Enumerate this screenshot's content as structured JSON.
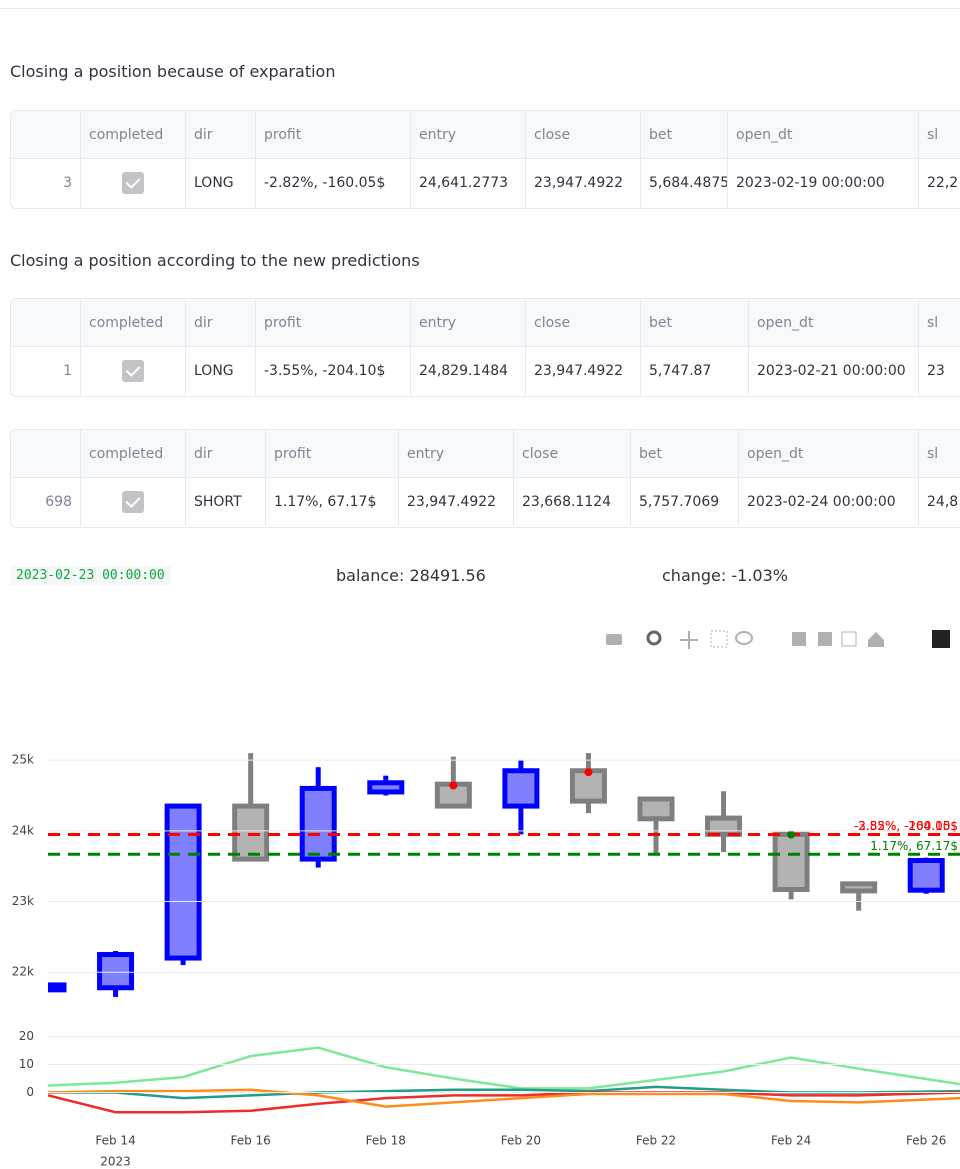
{
  "sections": [
    {
      "heading": "Closing a position because of exparation",
      "tables": [
        {
          "columns": [
            "completed",
            "dir",
            "profit",
            "entry",
            "close",
            "bet",
            "open_dt",
            "sl"
          ],
          "rows": [
            [
              "3",
              true,
              "LONG",
              "-2.82%, -160.05$",
              "24,641.2773",
              "23,947.4922",
              "5,684.4875",
              "2023-02-19 00:00:00",
              "22,2"
            ]
          ]
        }
      ]
    },
    {
      "heading": "Closing a position according to the new predictions",
      "tables": [
        {
          "columns": [
            "completed",
            "dir",
            "profit",
            "entry",
            "close",
            "bet",
            "open_dt",
            "sl"
          ],
          "rows": [
            [
              "1",
              true,
              "LONG",
              "-3.55%, -204.10$",
              "24,829.1484",
              "23,947.4922",
              "5,747.87",
              "2023-02-21 00:00:00",
              "23"
            ]
          ]
        },
        {
          "columns": [
            "completed",
            "dir",
            "profit",
            "entry",
            "close",
            "bet",
            "open_dt",
            "sl"
          ],
          "rows": [
            [
              "698",
              true,
              "SHORT",
              "1.17%, 67.17$",
              "23,947.4922",
              "23,668.1124",
              "5,757.7069",
              "2023-02-24 00:00:00",
              "24,8"
            ]
          ]
        }
      ]
    }
  ],
  "status": {
    "timestamp": "2023-02-23 00:00:00",
    "balance": "balance: 28491.56",
    "change": "change: -1.03%"
  },
  "chart_data": [
    {
      "type": "candlestick",
      "x": [
        "2023-02-13",
        "2023-02-14",
        "2023-02-15",
        "2023-02-16",
        "2023-02-17",
        "2023-02-18",
        "2023-02-19",
        "2023-02-20",
        "2023-02-21",
        "2023-02-22",
        "2023-02-23",
        "2023-02-24",
        "2023-02-25",
        "2023-02-26"
      ],
      "open": [
        21750,
        21780,
        22200,
        24350,
        23600,
        24550,
        24660,
        24350,
        24850,
        24450,
        24180,
        23950,
        23250,
        23160
      ],
      "high": [
        21830,
        22300,
        24350,
        25100,
        24900,
        24780,
        25050,
        25000,
        25100,
        24450,
        24560,
        23950,
        23250,
        23620
      ],
      "low": [
        21720,
        21650,
        22100,
        23600,
        23480,
        24500,
        24350,
        23950,
        24250,
        23650,
        23700,
        23030,
        22870,
        23110
      ],
      "close": [
        21820,
        22250,
        24350,
        23600,
        24600,
        24680,
        24350,
        24850,
        24420,
        24170,
        23950,
        23170,
        23150,
        23580
      ],
      "increasing_color": "#0000ff",
      "increasing_fill": "#8080ff",
      "decreasing_color": "#7f7f7f",
      "decreasing_fill": "#b3b3b3",
      "xlim": [
        "2023-02-13",
        "2023-02-26 12:00"
      ],
      "ylim": [
        21550,
        25200
      ],
      "yticks": [
        {
          "value": 22000,
          "label": "22k"
        },
        {
          "value": 23000,
          "label": "23k"
        },
        {
          "value": 24000,
          "label": "24k"
        },
        {
          "value": 25000,
          "label": "25k"
        }
      ],
      "grid": true,
      "hlines": [
        {
          "value": 23947.4922,
          "color": "#ff0000",
          "labels": [
            "-2.82%, -160.05$",
            "-3.55%, -204.10$"
          ]
        },
        {
          "value": 23668.1124,
          "color": "#008000",
          "labels": [
            "1.17%, 67.17$"
          ]
        }
      ],
      "markers": {
        "x": [
          "2023-02-19",
          "2023-02-21",
          "2023-02-24"
        ],
        "values": [
          24641.2773,
          24829.1484,
          23947.4922
        ],
        "colors": [
          "#ff0000",
          "#ff0000",
          "#008000"
        ]
      }
    },
    {
      "type": "line",
      "x": [
        "2023-02-13",
        "2023-02-14",
        "2023-02-15",
        "2023-02-16",
        "2023-02-17",
        "2023-02-18",
        "2023-02-19",
        "2023-02-20",
        "2023-02-21",
        "2023-02-22",
        "2023-02-23",
        "2023-02-24",
        "2023-02-25",
        "2023-02-26 12:00"
      ],
      "series": [
        {
          "color": "#7ee89a",
          "values": [
            2.5,
            3.5,
            5.5,
            13,
            16,
            9,
            5,
            1.5,
            1.5,
            4.5,
            7.5,
            12.5,
            8.5,
            3
          ]
        },
        {
          "color": "#1f9e89",
          "values": [
            0,
            0,
            -2,
            -1,
            0,
            0.5,
            1,
            1,
            0.5,
            2,
            1,
            0,
            0,
            0.5
          ]
        },
        {
          "color": "#ef2b2b",
          "values": [
            -1,
            -7,
            -7,
            -6.5,
            -4,
            -2,
            -1,
            -1,
            0,
            0,
            0,
            -1,
            -1,
            0
          ]
        },
        {
          "color": "#ff8c1a",
          "values": [
            0,
            0.5,
            0.5,
            1,
            -1,
            -5,
            -3.5,
            -2,
            -0.5,
            -0.5,
            -0.5,
            -3,
            -3.5,
            -2
          ]
        }
      ],
      "xlim": [
        "2023-02-13",
        "2023-02-26 12:00"
      ],
      "ylim": [
        -8,
        23
      ],
      "yticks": [
        0,
        10,
        20
      ],
      "grid": true,
      "xticks": [
        {
          "value": "2023-02-14",
          "label": "Feb 14",
          "sublabel": "2023"
        },
        {
          "value": "2023-02-16",
          "label": "Feb 16"
        },
        {
          "value": "2023-02-18",
          "label": "Feb 18"
        },
        {
          "value": "2023-02-20",
          "label": "Feb 20"
        },
        {
          "value": "2023-02-22",
          "label": "Feb 22"
        },
        {
          "value": "2023-02-24",
          "label": "Feb 24"
        },
        {
          "value": "2023-02-26",
          "label": "Feb 26"
        }
      ]
    }
  ]
}
